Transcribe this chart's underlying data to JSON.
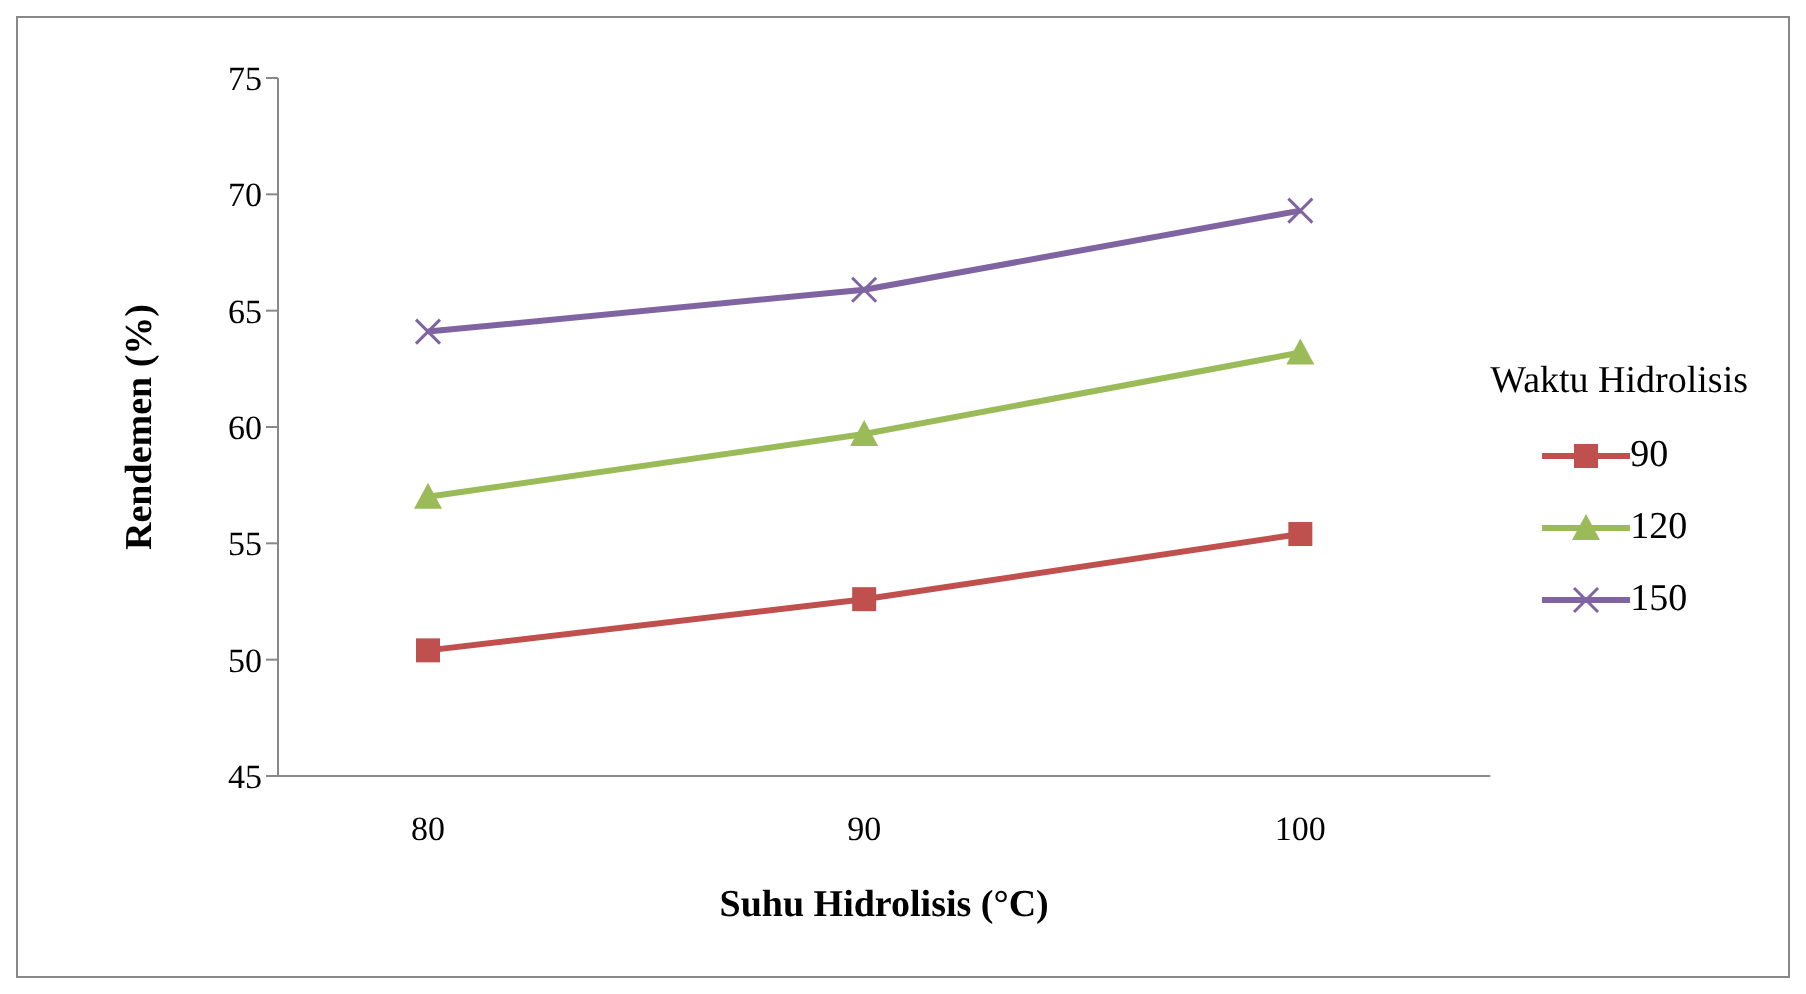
{
  "chart_data": {
    "type": "line",
    "xlabel": "Suhu Hidrolisis (°C)",
    "ylabel": "Rendemen (%)",
    "legend_title": "Waktu Hidrolisis",
    "categories": [
      "80",
      "90",
      "100"
    ],
    "ylim": [
      45,
      75
    ],
    "yticks": [
      45,
      50,
      55,
      60,
      65,
      70,
      75
    ],
    "grid": false,
    "legend": "right",
    "line_style": "solid",
    "series": [
      {
        "name": "90",
        "color": "#c0504d",
        "marker": "square",
        "values": [
          50.4,
          52.6,
          55.4
        ]
      },
      {
        "name": "120",
        "color": "#9bbb59",
        "marker": "triangle",
        "values": [
          57.0,
          59.7,
          63.2
        ]
      },
      {
        "name": "150",
        "color": "#8064a2",
        "marker": "cross",
        "values": [
          64.1,
          65.9,
          69.3
        ]
      }
    ]
  }
}
